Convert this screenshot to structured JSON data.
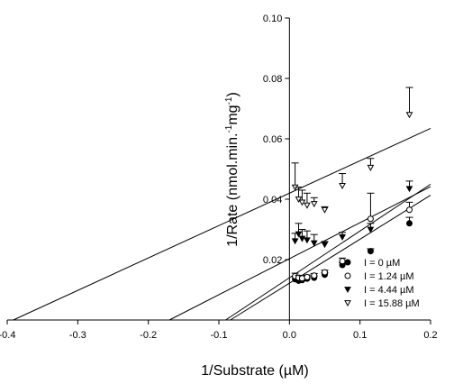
{
  "chart_data": {
    "type": "scatter",
    "title": "",
    "xlabel": "1/Substrate (µM)",
    "ylabel": "1/Rate (nmol.min.",
    "ylabel_sup1": "-1",
    "ylabel_mid": "mg",
    "ylabel_sup2": "-1",
    "ylabel_end": ")",
    "xlim": [
      -0.4,
      0.2
    ],
    "ylim": [
      0.0,
      0.1
    ],
    "xticks": [
      -0.4,
      -0.3,
      -0.2,
      -0.1,
      0.0,
      0.1,
      0.2
    ],
    "xtick_labels": [
      "-0.4",
      "-0.3",
      "-0.2",
      "-0.1",
      "0.0",
      "0.1",
      "0.2"
    ],
    "yticks": [
      0.02,
      0.04,
      0.06,
      0.08,
      0.1
    ],
    "ytick_labels": [
      "0.02",
      "0.04",
      "0.06",
      "0.08",
      "0.10"
    ],
    "grid": false,
    "legend_position": "bottom-right",
    "series": [
      {
        "name": "I = 0 µM",
        "marker": "filled-circle",
        "line": {
          "slope": 0.1456,
          "intercept": 0.0122
        },
        "points": [
          {
            "x": 0.008,
            "y": 0.0135,
            "err": 0.0008
          },
          {
            "x": 0.013,
            "y": 0.013,
            "err": 0.0007
          },
          {
            "x": 0.018,
            "y": 0.0132,
            "err": 0.0007
          },
          {
            "x": 0.025,
            "y": 0.0137,
            "err": 0.0006
          },
          {
            "x": 0.035,
            "y": 0.014,
            "err": 0.0006
          },
          {
            "x": 0.05,
            "y": 0.015,
            "err": 0.0006
          },
          {
            "x": 0.075,
            "y": 0.0182,
            "err": 0.0008
          },
          {
            "x": 0.115,
            "y": 0.0228,
            "err": 0.0008
          },
          {
            "x": 0.17,
            "y": 0.032,
            "err": 0.002
          }
        ]
      },
      {
        "name": "I = 1.24 µM",
        "marker": "open-circle",
        "line": {
          "slope": 0.1548,
          "intercept": 0.014
        },
        "points": [
          {
            "x": 0.008,
            "y": 0.0145,
            "err": 0.001
          },
          {
            "x": 0.013,
            "y": 0.014,
            "err": 0.0008
          },
          {
            "x": 0.018,
            "y": 0.0138,
            "err": 0.0008
          },
          {
            "x": 0.025,
            "y": 0.0142,
            "err": 0.0007
          },
          {
            "x": 0.035,
            "y": 0.0147,
            "err": 0.0007
          },
          {
            "x": 0.05,
            "y": 0.0158,
            "err": 0.0007
          },
          {
            "x": 0.075,
            "y": 0.0195,
            "err": 0.001
          },
          {
            "x": 0.115,
            "y": 0.0335,
            "err": 0.0085
          },
          {
            "x": 0.17,
            "y": 0.0365,
            "err": 0.0025
          }
        ]
      },
      {
        "name": "I = 4.44 µM",
        "marker": "filled-triangle-down",
        "line": {
          "slope": 0.1193,
          "intercept": 0.0203
        },
        "points": [
          {
            "x": 0.008,
            "y": 0.0262,
            "err": 0.0025
          },
          {
            "x": 0.013,
            "y": 0.0285,
            "err": 0.0035
          },
          {
            "x": 0.018,
            "y": 0.027,
            "err": 0.003
          },
          {
            "x": 0.025,
            "y": 0.0265,
            "err": 0.003
          },
          {
            "x": 0.035,
            "y": 0.0255,
            "err": 0.0028
          },
          {
            "x": 0.05,
            "y": 0.025,
            "err": 0.001
          },
          {
            "x": 0.075,
            "y": 0.0275,
            "err": 0.0015
          },
          {
            "x": 0.115,
            "y": 0.03,
            "err": 0.002
          },
          {
            "x": 0.17,
            "y": 0.0435,
            "err": 0.0025
          }
        ]
      },
      {
        "name": "I = 15.88 µM",
        "marker": "open-triangle-down",
        "line": {
          "slope": 0.1073,
          "intercept": 0.042
        },
        "points": [
          {
            "x": 0.008,
            "y": 0.044,
            "err": 0.008
          },
          {
            "x": 0.013,
            "y": 0.04,
            "err": 0.004
          },
          {
            "x": 0.018,
            "y": 0.039,
            "err": 0.004
          },
          {
            "x": 0.025,
            "y": 0.038,
            "err": 0.004
          },
          {
            "x": 0.035,
            "y": 0.0385,
            "err": 0.002
          },
          {
            "x": 0.05,
            "y": 0.0365,
            "err": 0.001
          },
          {
            "x": 0.075,
            "y": 0.0445,
            "err": 0.004
          },
          {
            "x": 0.115,
            "y": 0.0505,
            "err": 0.003
          },
          {
            "x": 0.17,
            "y": 0.068,
            "err": 0.009
          }
        ]
      }
    ]
  }
}
